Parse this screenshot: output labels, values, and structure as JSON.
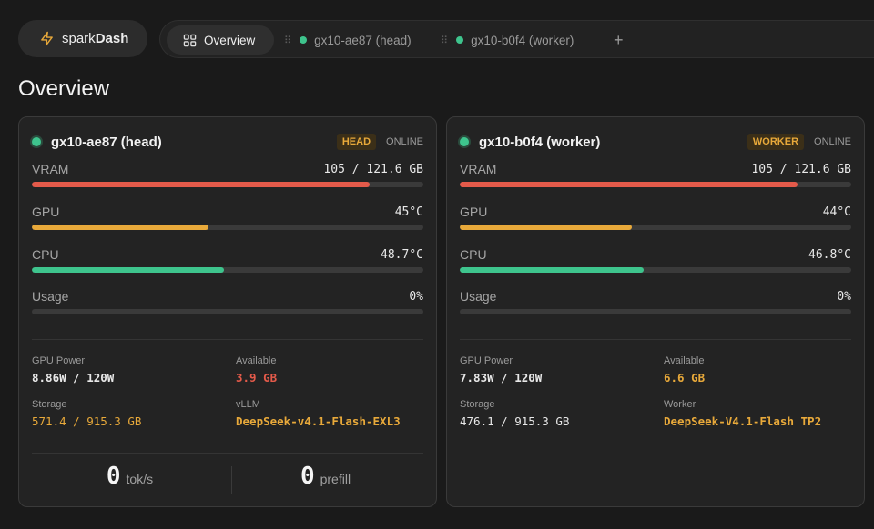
{
  "app": {
    "brand_prefix": "spark",
    "brand_suffix": "Dash",
    "brand_icon": "lightning-icon"
  },
  "tabs": [
    {
      "label": "Overview",
      "icon": "grid-icon",
      "active": true
    },
    {
      "label": "gx10-ae87 (head)",
      "status_color": "#3ec48d"
    },
    {
      "label": "gx10-b0f4 (worker)",
      "status_color": "#3ec48d"
    }
  ],
  "add_tab_label": "+",
  "page_title": "Overview",
  "nodes": [
    {
      "name": "gx10-ae87 (head)",
      "role": "HEAD",
      "status": "ONLINE",
      "metrics": [
        {
          "label": "VRAM",
          "value": "105 / 121.6 GB",
          "fraction": 0.863,
          "color": "#e45a4a"
        },
        {
          "label": "GPU",
          "value": "45°C",
          "fraction": 0.45,
          "color": "#e8a93a"
        },
        {
          "label": "CPU",
          "value": "48.7°C",
          "fraction": 0.49,
          "color": "#3ec48d"
        },
        {
          "label": "Usage",
          "value": "0%",
          "fraction": 0,
          "color": "#3ec48d"
        }
      ],
      "stats": [
        {
          "label": "GPU Power",
          "value": "8.86W / 120W",
          "color": "#e8e8e8",
          "bold": true
        },
        {
          "label": "Available",
          "value": "3.9 GB",
          "color": "#e45a4a",
          "bold": true
        },
        {
          "label": "Storage",
          "value": "571.4 / 915.3 GB",
          "color": "#e8a93a",
          "bold": false
        },
        {
          "label": "vLLM",
          "value": "DeepSeek-v4.1-Flash-EXL3",
          "color": "#e8a93a",
          "bold": true
        }
      ],
      "footer": [
        {
          "value": "0",
          "unit": "tok/s"
        },
        {
          "value": "0",
          "unit": "prefill"
        }
      ]
    },
    {
      "name": "gx10-b0f4 (worker)",
      "role": "WORKER",
      "status": "ONLINE",
      "metrics": [
        {
          "label": "VRAM",
          "value": "105 / 121.6 GB",
          "fraction": 0.863,
          "color": "#e45a4a"
        },
        {
          "label": "GPU",
          "value": "44°C",
          "fraction": 0.44,
          "color": "#e8a93a"
        },
        {
          "label": "CPU",
          "value": "46.8°C",
          "fraction": 0.47,
          "color": "#3ec48d"
        },
        {
          "label": "Usage",
          "value": "0%",
          "fraction": 0,
          "color": "#3ec48d"
        }
      ],
      "stats": [
        {
          "label": "GPU Power",
          "value": "7.83W / 120W",
          "color": "#e8e8e8",
          "bold": true
        },
        {
          "label": "Available",
          "value": "6.6 GB",
          "color": "#e8a93a",
          "bold": true
        },
        {
          "label": "Storage",
          "value": "476.1 / 915.3 GB",
          "color": "#e8e8e8",
          "bold": false
        },
        {
          "label": "Worker",
          "value": "DeepSeek-V4.1-Flash TP2",
          "color": "#e8a93a",
          "bold": true
        }
      ]
    }
  ]
}
